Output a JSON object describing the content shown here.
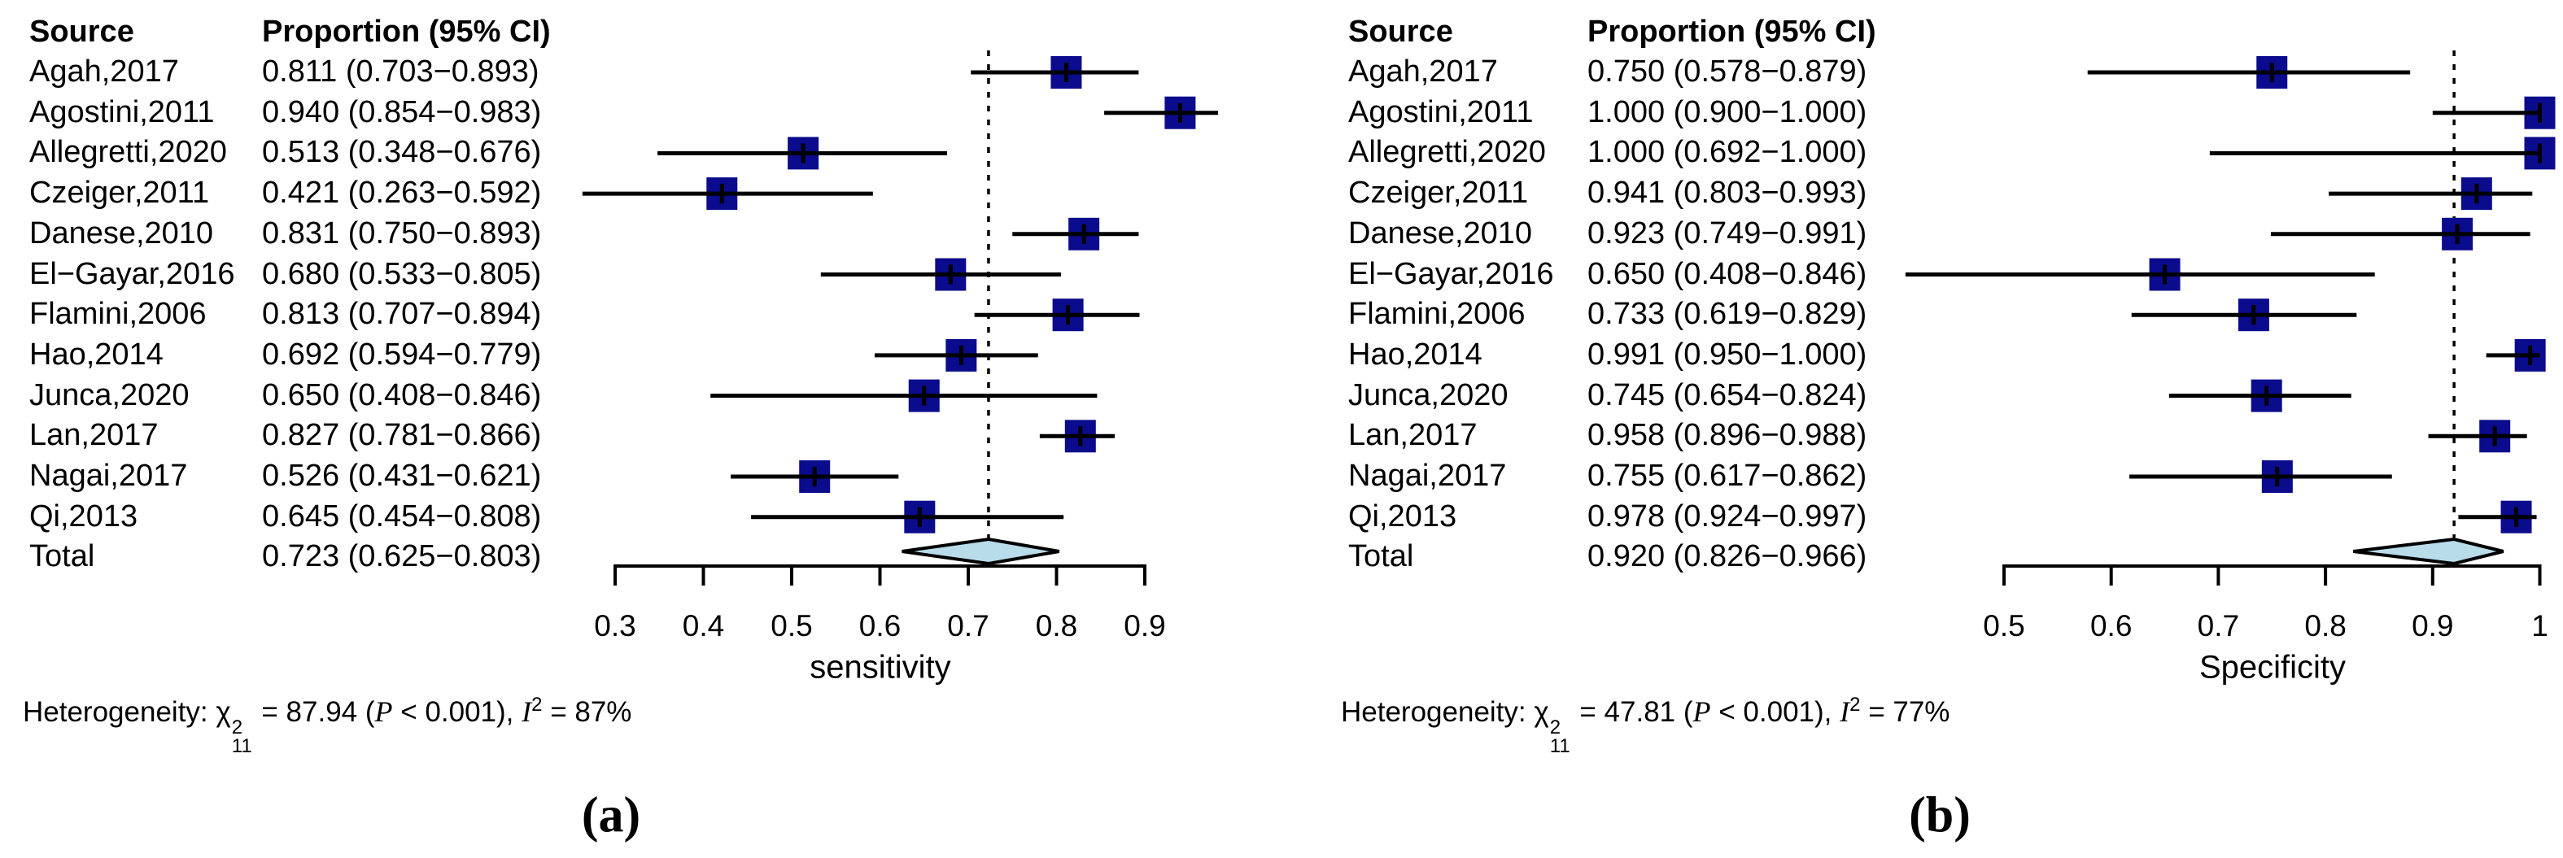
{
  "colors": {
    "square": "#0b0b8d",
    "diamond_fill": "#b9dcea",
    "diamond_stroke": "#000000",
    "line": "#000000",
    "text": "#000000"
  },
  "chart_data": [
    {
      "type": "forest",
      "panel_label": "(a)",
      "columns": {
        "source": "Source",
        "proportion": "Proportion (95% CI)"
      },
      "xlabel": "sensitivity",
      "xlim": [
        0.26,
        0.99
      ],
      "grid": false,
      "xticks": [
        {
          "v": 0.3,
          "label": "0.3"
        },
        {
          "v": 0.4,
          "label": "0.4"
        },
        {
          "v": 0.5,
          "label": "0.5"
        },
        {
          "v": 0.6,
          "label": "0.6"
        },
        {
          "v": 0.7,
          "label": "0.7"
        },
        {
          "v": 0.8,
          "label": "0.8"
        },
        {
          "v": 0.9,
          "label": "0.9"
        }
      ],
      "studies": [
        {
          "source": "Agah,2017",
          "est": 0.811,
          "lo": 0.703,
          "hi": 0.893,
          "text": "0.811 (0.703−0.893)"
        },
        {
          "source": "Agostini,2011",
          "est": 0.94,
          "lo": 0.854,
          "hi": 0.983,
          "text": "0.940 (0.854−0.983)"
        },
        {
          "source": "Allegretti,2020",
          "est": 0.513,
          "lo": 0.348,
          "hi": 0.676,
          "text": "0.513 (0.348−0.676)"
        },
        {
          "source": "Czeiger,2011",
          "est": 0.421,
          "lo": 0.263,
          "hi": 0.592,
          "text": "0.421 (0.263−0.592)"
        },
        {
          "source": "Danese,2010",
          "est": 0.831,
          "lo": 0.75,
          "hi": 0.893,
          "text": "0.831 (0.750−0.893)"
        },
        {
          "source": "El−Gayar,2016",
          "est": 0.68,
          "lo": 0.533,
          "hi": 0.805,
          "text": "0.680 (0.533−0.805)"
        },
        {
          "source": "Flamini,2006",
          "est": 0.813,
          "lo": 0.707,
          "hi": 0.894,
          "text": "0.813 (0.707−0.894)"
        },
        {
          "source": "Hao,2014",
          "est": 0.692,
          "lo": 0.594,
          "hi": 0.779,
          "text": "0.692 (0.594−0.779)"
        },
        {
          "source": "Junca,2020",
          "est": 0.65,
          "lo": 0.408,
          "hi": 0.846,
          "text": "0.650 (0.408−0.846)"
        },
        {
          "source": "Lan,2017",
          "est": 0.827,
          "lo": 0.781,
          "hi": 0.866,
          "text": "0.827 (0.781−0.866)"
        },
        {
          "source": "Nagai,2017",
          "est": 0.526,
          "lo": 0.431,
          "hi": 0.621,
          "text": "0.526 (0.431−0.621)"
        },
        {
          "source": "Qi,2013",
          "est": 0.645,
          "lo": 0.454,
          "hi": 0.808,
          "text": "0.645 (0.454−0.808)"
        }
      ],
      "total": {
        "source": "Total",
        "est": 0.723,
        "lo": 0.625,
        "hi": 0.803,
        "text": "0.723 (0.625−0.803)"
      },
      "heterogeneity": {
        "prefix": "Heterogeneity: ",
        "chi": "χ",
        "chi_sup": "2",
        "chi_sub": "11",
        "mid": " = 87.94 (",
        "p": "P",
        "after_p": " < 0.001), ",
        "i": "I",
        "i_sup": "2",
        "suffix": " = 87%"
      }
    },
    {
      "type": "forest",
      "panel_label": "(b)",
      "columns": {
        "source": "Source",
        "proportion": "Proportion (95% CI)"
      },
      "xlabel": "Specificity",
      "xlim": [
        0.4,
        1.01
      ],
      "grid": false,
      "xticks": [
        {
          "v": 0.5,
          "label": "0.5"
        },
        {
          "v": 0.6,
          "label": "0.6"
        },
        {
          "v": 0.7,
          "label": "0.7"
        },
        {
          "v": 0.8,
          "label": "0.8"
        },
        {
          "v": 0.9,
          "label": "0.9"
        },
        {
          "v": 1.0,
          "label": "1"
        }
      ],
      "studies": [
        {
          "source": "Agah,2017",
          "est": 0.75,
          "lo": 0.578,
          "hi": 0.879,
          "text": "0.750 (0.578−0.879)"
        },
        {
          "source": "Agostini,2011",
          "est": 1.0,
          "lo": 0.9,
          "hi": 1.0,
          "text": "1.000 (0.900−1.000)"
        },
        {
          "source": "Allegretti,2020",
          "est": 1.0,
          "lo": 0.692,
          "hi": 1.0,
          "text": "1.000 (0.692−1.000)"
        },
        {
          "source": "Czeiger,2011",
          "est": 0.941,
          "lo": 0.803,
          "hi": 0.993,
          "text": "0.941 (0.803−0.993)"
        },
        {
          "source": "Danese,2010",
          "est": 0.923,
          "lo": 0.749,
          "hi": 0.991,
          "text": "0.923 (0.749−0.991)"
        },
        {
          "source": "El−Gayar,2016",
          "est": 0.65,
          "lo": 0.408,
          "hi": 0.846,
          "text": "0.650 (0.408−0.846)"
        },
        {
          "source": "Flamini,2006",
          "est": 0.733,
          "lo": 0.619,
          "hi": 0.829,
          "text": "0.733 (0.619−0.829)"
        },
        {
          "source": "Hao,2014",
          "est": 0.991,
          "lo": 0.95,
          "hi": 1.0,
          "text": "0.991 (0.950−1.000)"
        },
        {
          "source": "Junca,2020",
          "est": 0.745,
          "lo": 0.654,
          "hi": 0.824,
          "text": "0.745 (0.654−0.824)"
        },
        {
          "source": "Lan,2017",
          "est": 0.958,
          "lo": 0.896,
          "hi": 0.988,
          "text": "0.958 (0.896−0.988)"
        },
        {
          "source": "Nagai,2017",
          "est": 0.755,
          "lo": 0.617,
          "hi": 0.862,
          "text": "0.755 (0.617−0.862)"
        },
        {
          "source": "Qi,2013",
          "est": 0.978,
          "lo": 0.924,
          "hi": 0.997,
          "text": "0.978 (0.924−0.997)"
        }
      ],
      "total": {
        "source": "Total",
        "est": 0.92,
        "lo": 0.826,
        "hi": 0.966,
        "text": "0.920 (0.826−0.966)"
      },
      "heterogeneity": {
        "prefix": "Heterogeneity: ",
        "chi": "χ",
        "chi_sup": "2",
        "chi_sub": "11",
        "mid": " = 47.81 (",
        "p": "P",
        "after_p": " < 0.001), ",
        "i": "I",
        "i_sup": "2",
        "suffix": " = 77%"
      }
    }
  ]
}
